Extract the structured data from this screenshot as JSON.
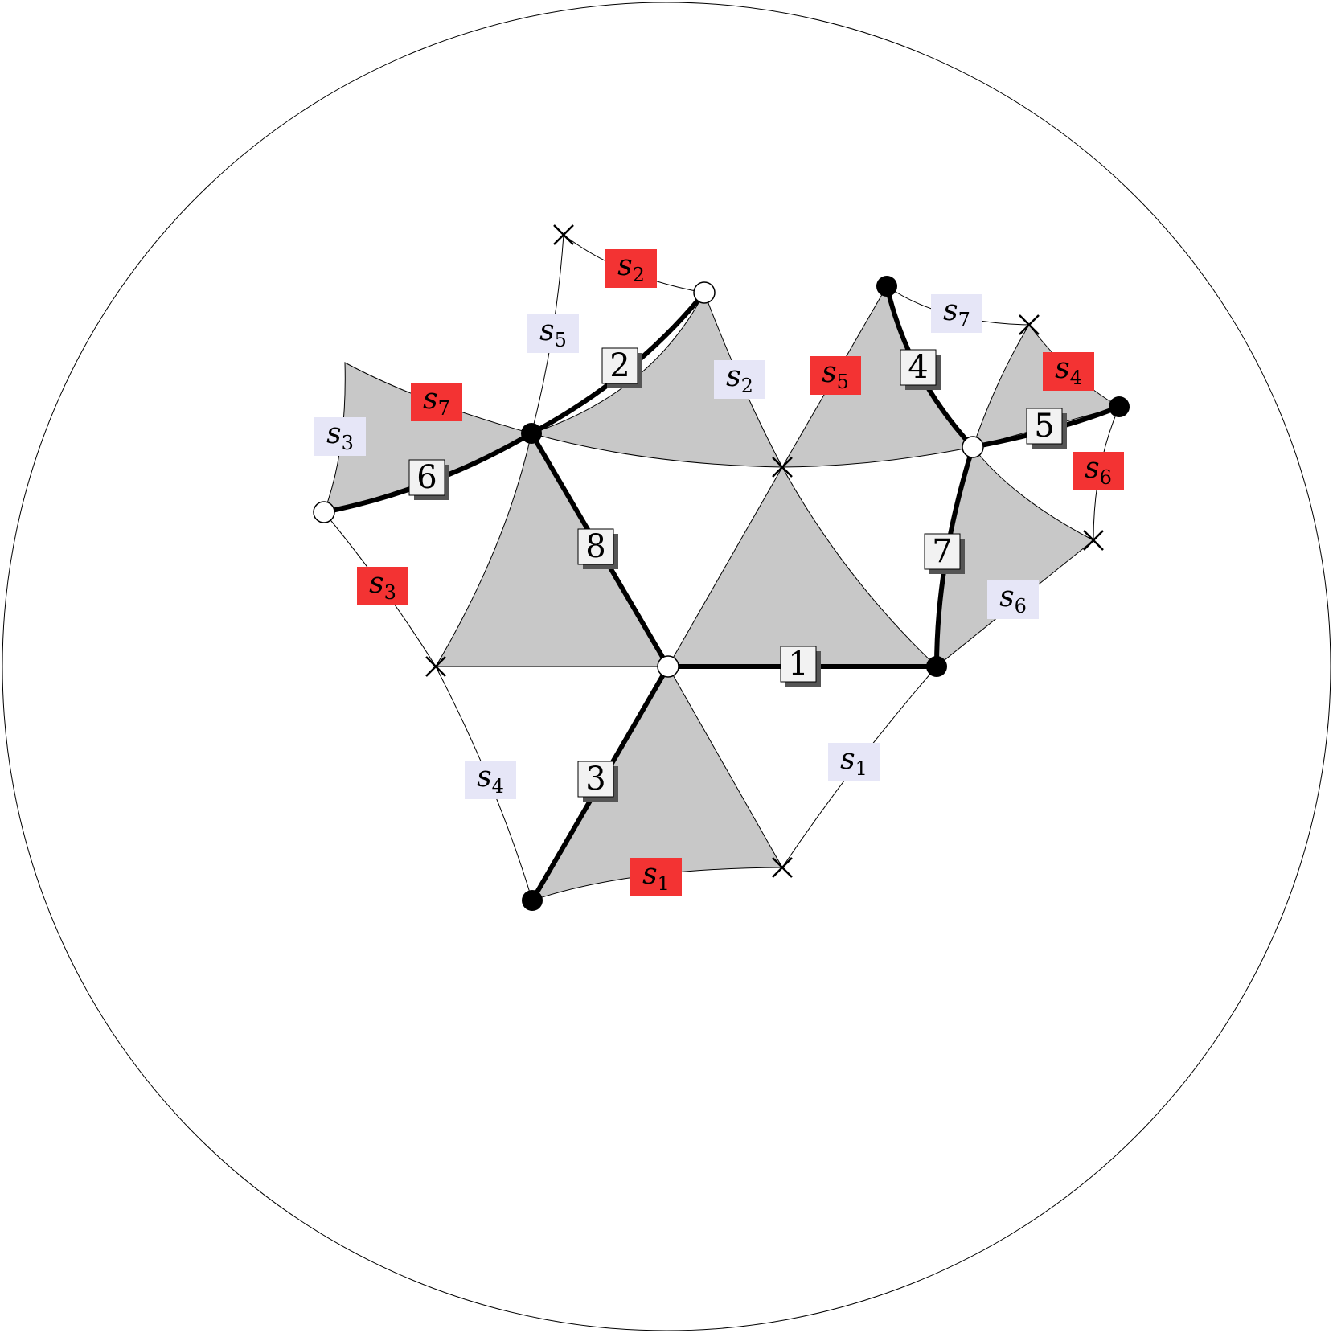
{
  "edge_numbers": [
    "1",
    "2",
    "3",
    "4",
    "5",
    "6",
    "7",
    "8"
  ],
  "labels": [
    {
      "s": "s",
      "i": "2",
      "kind": "red"
    },
    {
      "s": "s",
      "i": "5",
      "kind": "blue"
    },
    {
      "s": "s",
      "i": "2",
      "kind": "blue"
    },
    {
      "s": "s",
      "i": "7",
      "kind": "red"
    },
    {
      "s": "s",
      "i": "3",
      "kind": "blue"
    },
    {
      "s": "s",
      "i": "3",
      "kind": "red"
    },
    {
      "s": "s",
      "i": "4",
      "kind": "blue"
    },
    {
      "s": "s",
      "i": "1",
      "kind": "red"
    },
    {
      "s": "s",
      "i": "1",
      "kind": "blue"
    },
    {
      "s": "s",
      "i": "5",
      "kind": "red"
    },
    {
      "s": "s",
      "i": "7",
      "kind": "blue"
    },
    {
      "s": "s",
      "i": "4",
      "kind": "red"
    },
    {
      "s": "s",
      "i": "6",
      "kind": "red"
    },
    {
      "s": "s",
      "i": "6",
      "kind": "blue"
    }
  ],
  "colors": {
    "red_label": "#f33333",
    "blue_label": "#e6e6f7",
    "face": "#c8c8c8"
  }
}
